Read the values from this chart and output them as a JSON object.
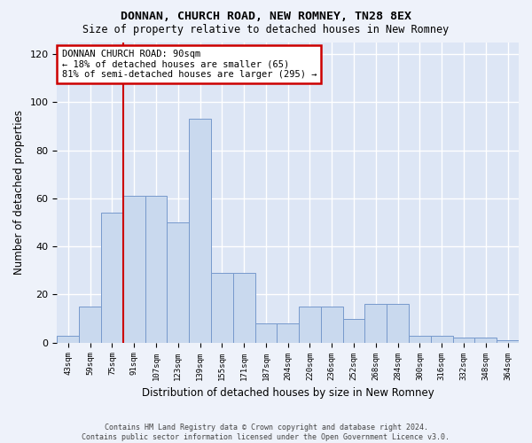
{
  "title": "DONNAN, CHURCH ROAD, NEW ROMNEY, TN28 8EX",
  "subtitle": "Size of property relative to detached houses in New Romney",
  "xlabel": "Distribution of detached houses by size in New Romney",
  "ylabel": "Number of detached properties",
  "footer_line1": "Contains HM Land Registry data © Crown copyright and database right 2024.",
  "footer_line2": "Contains public sector information licensed under the Open Government Licence v3.0.",
  "annotation_line1": "DONNAN CHURCH ROAD: 90sqm",
  "annotation_line2": "← 18% of detached houses are smaller (65)",
  "annotation_line3": "81% of semi-detached houses are larger (295) →",
  "bar_color": "#c9d9ee",
  "bar_edge_color": "#7799cc",
  "reference_line_color": "#cc0000",
  "annotation_box_edge_color": "#cc0000",
  "fig_bg_color": "#eef2fa",
  "plot_bg_color": "#dde6f5",
  "grid_color": "#ffffff",
  "categories": [
    "43sqm",
    "59sqm",
    "75sqm",
    "91sqm",
    "107sqm",
    "123sqm",
    "139sqm",
    "155sqm",
    "171sqm",
    "187sqm",
    "204sqm",
    "220sqm",
    "236sqm",
    "252sqm",
    "268sqm",
    "284sqm",
    "300sqm",
    "316sqm",
    "332sqm",
    "348sqm",
    "364sqm"
  ],
  "bar_values": [
    3,
    15,
    54,
    61,
    61,
    50,
    93,
    29,
    29,
    8,
    8,
    15,
    15,
    10,
    16,
    16,
    3,
    3,
    2,
    2,
    1
  ],
  "ref_bar_index": 2.5,
  "ylim": [
    0,
    125
  ],
  "yticks": [
    0,
    20,
    40,
    60,
    80,
    100,
    120
  ]
}
